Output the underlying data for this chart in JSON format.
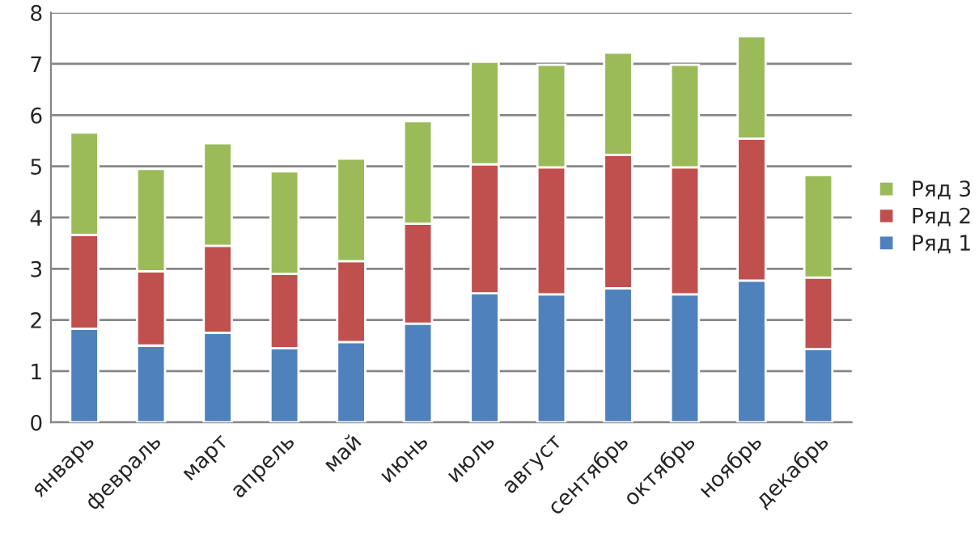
{
  "chart_data": {
    "type": "bar",
    "stacked": true,
    "categories": [
      "январь",
      "февраль",
      "март",
      "апрель",
      "май",
      "июнь",
      "июль",
      "август",
      "сентябрь",
      "октябрь",
      "ноябрь",
      "декабрь"
    ],
    "series": [
      {
        "name": "Ряд 1",
        "color": "#4f81bd",
        "values": [
          1.83,
          1.5,
          1.75,
          1.45,
          1.57,
          1.93,
          2.52,
          2.5,
          2.62,
          2.5,
          2.77,
          1.43
        ]
      },
      {
        "name": "Ряд 2",
        "color": "#c0504d",
        "values": [
          1.83,
          1.45,
          1.7,
          1.45,
          1.58,
          1.95,
          2.52,
          2.48,
          2.6,
          2.48,
          2.77,
          1.4
        ]
      },
      {
        "name": "Ряд 3",
        "color": "#9bbb59",
        "values": [
          2.0,
          2.0,
          2.0,
          2.0,
          2.0,
          2.0,
          2.0,
          2.0,
          2.0,
          2.0,
          2.0,
          2.0
        ]
      }
    ],
    "ylim": [
      0,
      8
    ],
    "yticks": [
      0,
      1,
      2,
      3,
      4,
      5,
      6,
      7,
      8
    ],
    "grid": "y",
    "legend": "right"
  }
}
